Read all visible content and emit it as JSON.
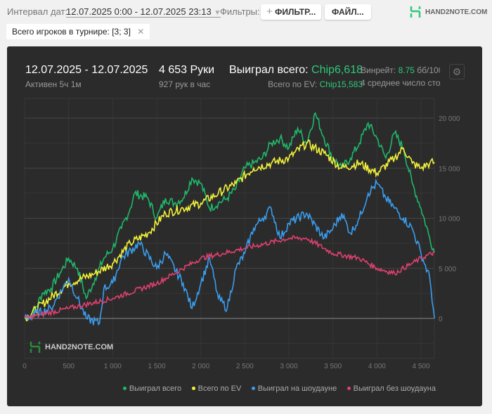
{
  "header": {
    "date_interval_label": "Интервал дат:",
    "date_interval_value": "12.07.2025 0:00 - 12.07.2025 23:13",
    "filters_label": "Фильтры:",
    "filter_button": "ФИЛЬТР...",
    "file_button": "ФАЙЛ...",
    "logo": "HAND2NOTE.COM"
  },
  "chip": {
    "label": "Всего игроков в турнире: [3; 3]"
  },
  "stats": {
    "date_range": "12.07.2025 - 12.07.2025",
    "active": "Активен 5ч 1м",
    "hands": "4 653 Руки",
    "hands_per_hour": "927 рук в час",
    "won_label": "Выиграл всего:",
    "won_value": "Chip6,618",
    "ev_label": "Всего по EV:",
    "ev_value": "Chip15,583",
    "winrate_label": "Винрейт:",
    "winrate_value": "8.75",
    "winrate_unit": "бб/100",
    "avg_label": "4 среднее число сто..."
  },
  "watermark": "HAND2NOTE.COM",
  "colors": {
    "green": "#1fb86a",
    "yellow": "#f2f23a",
    "blue": "#3a9ef0",
    "red": "#e0406e"
  },
  "chart_data": {
    "type": "line",
    "xlim": [
      0,
      4653
    ],
    "ylim": [
      -3000,
      21000
    ],
    "x_ticks": [
      "0",
      "500",
      "1 000",
      "1 500",
      "2 000",
      "2 500",
      "3 000",
      "3 500",
      "4 000",
      "4 500"
    ],
    "y_ticks": [
      "0",
      "5 000",
      "10 000",
      "15 000",
      "20 000"
    ],
    "legend_position": "bottom-right",
    "series": [
      {
        "name": "Выиграл всего",
        "color": "#1fb86a",
        "x": [
          0,
          100,
          200,
          300,
          400,
          500,
          600,
          700,
          800,
          900,
          1000,
          1100,
          1200,
          1250,
          1400,
          1500,
          1600,
          1700,
          1800,
          1900,
          2000,
          2100,
          2200,
          2300,
          2400,
          2500,
          2600,
          2700,
          2800,
          2900,
          3000,
          3100,
          3200,
          3300,
          3400,
          3500,
          3600,
          3700,
          3800,
          3900,
          4000,
          4100,
          4200,
          4300,
          4400,
          4500,
          4600,
          4653
        ],
        "y": [
          0,
          500,
          2500,
          3000,
          4500,
          6000,
          5000,
          2000,
          4000,
          6000,
          7000,
          9000,
          11000,
          12500,
          12000,
          10000,
          12000,
          11500,
          12000,
          14000,
          13500,
          11000,
          11500,
          12000,
          13000,
          15000,
          15500,
          16000,
          17500,
          18000,
          17000,
          19000,
          17500,
          20500,
          18000,
          16000,
          15000,
          16000,
          17500,
          19500,
          18000,
          16000,
          18500,
          17000,
          13500,
          11000,
          8000,
          6618
        ]
      },
      {
        "name": "Всего по EV",
        "color": "#f2f23a",
        "x": [
          0,
          500,
          800,
          1000,
          1200,
          1400,
          1600,
          1800,
          2000,
          2200,
          2400,
          2600,
          2800,
          3000,
          3200,
          3400,
          3600,
          3800,
          4000,
          4200,
          4300,
          4400,
          4500,
          4600,
          4653
        ],
        "y": [
          0,
          3500,
          4500,
          5500,
          7500,
          8500,
          10500,
          11000,
          11500,
          12500,
          13500,
          15000,
          15500,
          16000,
          17500,
          16500,
          15000,
          15500,
          14500,
          16000,
          17000,
          15500,
          15000,
          15500,
          15583
        ]
      },
      {
        "name": "Выиграл на шоудауне",
        "color": "#3a9ef0",
        "x": [
          0,
          300,
          500,
          600,
          700,
          850,
          900,
          1000,
          1100,
          1300,
          1500,
          1600,
          1800,
          1900,
          2000,
          2100,
          2200,
          2300,
          2400,
          2500,
          2600,
          2700,
          2800,
          2900,
          3000,
          3200,
          3400,
          3500,
          3600,
          3700,
          3800,
          3900,
          4000,
          4100,
          4200,
          4300,
          4400,
          4500,
          4600,
          4653
        ],
        "y": [
          0,
          1000,
          4000,
          2000,
          0,
          -500,
          3000,
          3500,
          6000,
          7500,
          5000,
          6500,
          3500,
          1000,
          3500,
          6000,
          2000,
          1000,
          5000,
          6500,
          9000,
          10000,
          11000,
          8000,
          9500,
          10500,
          8000,
          9000,
          10500,
          8500,
          10000,
          12500,
          13500,
          12000,
          11000,
          10000,
          9000,
          6500,
          4000,
          0
        ]
      },
      {
        "name": "Выиграл без шоудауна",
        "color": "#e0406e",
        "x": [
          0,
          500,
          1000,
          1500,
          2000,
          2500,
          3000,
          3200,
          3500,
          3800,
          4000,
          4200,
          4400,
          4500,
          4653
        ],
        "y": [
          0,
          1000,
          2000,
          3500,
          6000,
          7000,
          8000,
          8000,
          6500,
          6000,
          5000,
          4500,
          5500,
          6000,
          6600
        ]
      }
    ]
  }
}
